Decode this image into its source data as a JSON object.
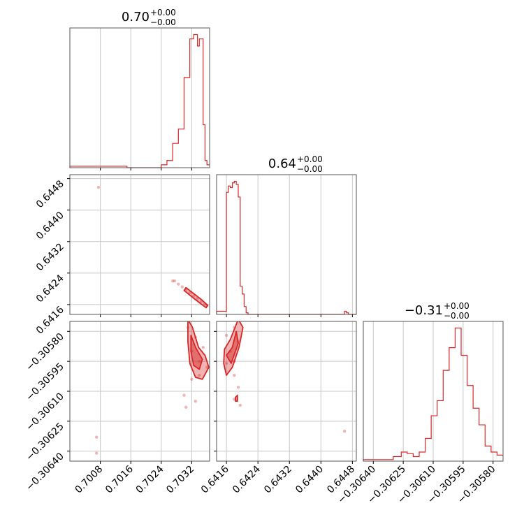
{
  "chart_data": {
    "type": "corner",
    "color": "#d62728",
    "grid": true,
    "parameters": [
      {
        "title": {
          "value": "0.70",
          "plus": "+0.00",
          "minus": "−0.00"
        },
        "range": [
          0.7,
          0.70367
        ],
        "ticks": [
          0.7008,
          0.7016,
          0.7024,
          0.7032
        ],
        "tick_labels": [
          "0.7008",
          "0.7016",
          "0.7024",
          "0.7032"
        ],
        "histogram": {
          "bins": [
            0.7,
            0.70075,
            0.7015,
            0.70225,
            0.7024,
            0.70255,
            0.7027,
            0.70285,
            0.703,
            0.70315,
            0.7032,
            0.70325,
            0.7033,
            0.70335,
            0.7034,
            0.70345,
            0.7035,
            0.70355,
            0.7036,
            0.70367
          ],
          "values": [
            0.01,
            0.01,
            0.0,
            0.0,
            0.02,
            0.05,
            0.17,
            0.27,
            0.63,
            0.9,
            0.9,
            0.93,
            0.93,
            0.85,
            0.9,
            0.9,
            0.3,
            0.05,
            0.02
          ]
        }
      },
      {
        "title": {
          "value": "0.64",
          "plus": "+0.00",
          "minus": "−0.00"
        },
        "range": [
          0.64135,
          0.6449
        ],
        "ticks": [
          0.6416,
          0.6424,
          0.6432,
          0.644,
          0.6448
        ],
        "tick_labels": [
          "0.6416",
          "0.6424",
          "0.6432",
          "0.6440",
          "0.6448"
        ],
        "histogram": {
          "bins": [
            0.64135,
            0.64155,
            0.6416,
            0.64165,
            0.6417,
            0.64175,
            0.6418,
            0.64185,
            0.6419,
            0.64195,
            0.642,
            0.64205,
            0.6421,
            0.64215,
            0.6422,
            0.6446,
            0.64465,
            0.6447,
            0.6449
          ],
          "values": [
            0.02,
            0.02,
            0.78,
            0.82,
            0.81,
            0.84,
            0.85,
            0.83,
            0.75,
            0.18,
            0.13,
            0.05,
            0.01,
            0.0,
            0.0,
            0.02,
            0.01,
            0.0
          ]
        }
      },
      {
        "title": {
          "value": "−0.31",
          "plus": "+0.00",
          "minus": "−0.00"
        },
        "range": [
          -0.30645,
          -0.30575
        ],
        "ticks": [
          -0.3064,
          -0.30625,
          -0.3061,
          -0.30595,
          -0.3058
        ],
        "tick_labels": [
          "−0.30640",
          "−0.30625",
          "−0.30610",
          "−0.30595",
          "−0.30580"
        ],
        "histogram": {
          "bins": [
            -0.30645,
            -0.3063,
            -0.30626,
            -0.30623,
            -0.3062,
            -0.30617,
            -0.30614,
            -0.30611,
            -0.30608,
            -0.30605,
            -0.30602,
            -0.30599,
            -0.30596,
            -0.30593,
            -0.3059,
            -0.30587,
            -0.30584,
            -0.30581,
            -0.30578,
            -0.30575
          ],
          "values": [
            0.01,
            0.03,
            0.06,
            0.05,
            0.03,
            0.06,
            0.15,
            0.3,
            0.4,
            0.6,
            0.75,
            0.88,
            0.7,
            0.5,
            0.35,
            0.24,
            0.1,
            0.06,
            0.04
          ]
        }
      }
    ],
    "panels_2d": [
      {
        "x_param": 0,
        "y_param": 1,
        "points": [
          [
            0.70295,
            0.64205
          ],
          [
            0.70305,
            0.64198
          ],
          [
            0.70315,
            0.6419
          ],
          [
            0.70325,
            0.64182
          ],
          [
            0.70335,
            0.64175
          ],
          [
            0.70345,
            0.64168
          ],
          [
            0.70355,
            0.64162
          ],
          [
            0.7036,
            0.64158
          ],
          [
            0.70285,
            0.64212
          ],
          [
            0.70275,
            0.6422
          ],
          [
            0.7027,
            0.6422
          ],
          [
            0.70075,
            0.64458
          ]
        ],
        "contours": [
          [
            [
              0.70305,
              0.64203
            ],
            [
              0.70325,
              0.64188
            ],
            [
              0.70345,
              0.64173
            ],
            [
              0.70362,
              0.64158
            ],
            [
              0.70358,
              0.64152
            ],
            [
              0.7034,
              0.64165
            ],
            [
              0.7032,
              0.6418
            ],
            [
              0.703,
              0.64196
            ]
          ]
        ]
      },
      {
        "x_param": 0,
        "y_param": 2,
        "points": [
          [
            0.7031,
            -0.30578
          ],
          [
            0.7033,
            -0.30583
          ],
          [
            0.7032,
            -0.3059
          ],
          [
            0.7034,
            -0.30595
          ],
          [
            0.7035,
            -0.30588
          ],
          [
            0.7036,
            -0.30598
          ],
          [
            0.7032,
            -0.30604
          ],
          [
            0.7034,
            -0.30602
          ],
          [
            0.703,
            -0.30612
          ],
          [
            0.70305,
            -0.30618
          ],
          [
            0.7033,
            -0.30615
          ],
          [
            0.7007,
            -0.30633
          ],
          [
            0.7007,
            -0.30641
          ]
        ],
        "contours": [
          [
            [
              0.7031,
              -0.30574
            ],
            [
              0.70322,
              -0.30578
            ],
            [
              0.70338,
              -0.30588
            ],
            [
              0.70355,
              -0.30592
            ],
            [
              0.70365,
              -0.30598
            ],
            [
              0.70348,
              -0.30604
            ],
            [
              0.7033,
              -0.30603
            ],
            [
              0.70315,
              -0.30596
            ],
            [
              0.7031,
              -0.30585
            ]
          ],
          [
            [
              0.70318,
              -0.30582
            ],
            [
              0.7033,
              -0.30588
            ],
            [
              0.70348,
              -0.30594
            ],
            [
              0.7034,
              -0.30599
            ],
            [
              0.70325,
              -0.30597
            ],
            [
              0.70318,
              -0.3059
            ]
          ]
        ]
      },
      {
        "x_param": 1,
        "y_param": 2,
        "points": [
          [
            0.6416,
            -0.30582
          ],
          [
            0.6418,
            -0.30578
          ],
          [
            0.6419,
            -0.30585
          ],
          [
            0.6417,
            -0.3059
          ],
          [
            0.6416,
            -0.30596
          ],
          [
            0.6418,
            -0.30595
          ],
          [
            0.6418,
            -0.30602
          ],
          [
            0.6419,
            -0.30608
          ],
          [
            0.6418,
            -0.30614
          ],
          [
            0.64195,
            -0.30617
          ],
          [
            0.6446,
            -0.3063
          ]
        ],
        "contours": [
          [
            [
              0.64155,
              -0.30589
            ],
            [
              0.6417,
              -0.30584
            ],
            [
              0.6419,
              -0.30574
            ],
            [
              0.64202,
              -0.30578
            ],
            [
              0.64192,
              -0.30588
            ],
            [
              0.64175,
              -0.30598
            ],
            [
              0.6416,
              -0.30602
            ],
            [
              0.64153,
              -0.30596
            ]
          ],
          [
            [
              0.6416,
              -0.30592
            ],
            [
              0.64175,
              -0.30588
            ],
            [
              0.64185,
              -0.3058
            ],
            [
              0.6419,
              -0.30586
            ],
            [
              0.64172,
              -0.30596
            ]
          ],
          [
            [
              0.64183,
              -0.30613
            ],
            [
              0.64188,
              -0.30612
            ],
            [
              0.64188,
              -0.30615
            ],
            [
              0.64183,
              -0.30615
            ]
          ]
        ]
      }
    ]
  }
}
